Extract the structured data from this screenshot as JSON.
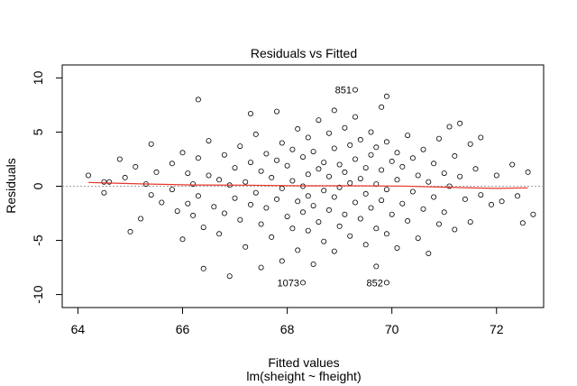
{
  "chart_data": {
    "type": "scatter",
    "title": "Residuals vs Fitted",
    "xlabel": "Fitted values",
    "subtitle": "lm(sheight ~ fheight)",
    "ylabel": "Residuals",
    "xlim": [
      63.7,
      72.9
    ],
    "ylim": [
      -11.2,
      11.2
    ],
    "xticks": [
      64,
      66,
      68,
      70,
      72
    ],
    "yticks": [
      -10,
      -5,
      0,
      5,
      10
    ],
    "grid": false,
    "zero_line_color": "#a0a0a0",
    "smooth_color": "#e8362a",
    "point_color": "#000000",
    "smooth": [
      [
        64.2,
        0.35
      ],
      [
        65.2,
        0.22
      ],
      [
        66.2,
        0.12
      ],
      [
        67.2,
        0.1
      ],
      [
        68.2,
        0.04
      ],
      [
        69.2,
        0.04
      ],
      [
        70.2,
        0.02
      ],
      [
        71.2,
        -0.12
      ],
      [
        72.0,
        -0.2
      ],
      [
        72.6,
        -0.15
      ]
    ],
    "labeled_points": [
      {
        "label": "851",
        "x": 69.3,
        "y": 8.9
      },
      {
        "label": "1073",
        "x": 68.3,
        "y": -8.9
      },
      {
        "label": "852",
        "x": 69.9,
        "y": -8.9
      }
    ],
    "points": [
      [
        64.2,
        1.0
      ],
      [
        64.5,
        -0.6
      ],
      [
        64.5,
        0.4
      ],
      [
        64.6,
        0.4
      ],
      [
        64.8,
        2.5
      ],
      [
        64.9,
        0.8
      ],
      [
        65.0,
        -4.2
      ],
      [
        65.1,
        1.8
      ],
      [
        65.2,
        -3.0
      ],
      [
        65.3,
        0.2
      ],
      [
        65.4,
        3.9
      ],
      [
        65.4,
        -0.8
      ],
      [
        65.5,
        1.3
      ],
      [
        65.6,
        -1.5
      ],
      [
        65.8,
        2.1
      ],
      [
        65.8,
        -0.3
      ],
      [
        65.9,
        -2.3
      ],
      [
        66.0,
        3.1
      ],
      [
        66.0,
        -4.9
      ],
      [
        66.1,
        1.2
      ],
      [
        66.1,
        -1.6
      ],
      [
        66.2,
        0.2
      ],
      [
        66.2,
        -2.7
      ],
      [
        66.3,
        8.0
      ],
      [
        66.3,
        2.6
      ],
      [
        66.3,
        -0.9
      ],
      [
        66.4,
        -7.6
      ],
      [
        66.4,
        -3.8
      ],
      [
        66.5,
        4.2
      ],
      [
        66.5,
        1.0
      ],
      [
        66.6,
        -1.9
      ],
      [
        66.7,
        0.6
      ],
      [
        66.7,
        -4.4
      ],
      [
        66.8,
        2.9
      ],
      [
        66.8,
        -2.5
      ],
      [
        66.9,
        0.1
      ],
      [
        66.9,
        -8.3
      ],
      [
        67.0,
        1.7
      ],
      [
        67.0,
        -1.1
      ],
      [
        67.1,
        3.7
      ],
      [
        67.1,
        -3.1
      ],
      [
        67.2,
        0.4
      ],
      [
        67.2,
        -5.6
      ],
      [
        67.3,
        6.7
      ],
      [
        67.3,
        2.2
      ],
      [
        67.3,
        -1.7
      ],
      [
        67.4,
        4.8
      ],
      [
        67.4,
        -0.6
      ],
      [
        67.5,
        1.4
      ],
      [
        67.5,
        -3.5
      ],
      [
        67.5,
        -7.5
      ],
      [
        67.6,
        3.0
      ],
      [
        67.6,
        -2.0
      ],
      [
        67.7,
        0.8
      ],
      [
        67.7,
        -4.7
      ],
      [
        67.8,
        6.9
      ],
      [
        67.8,
        2.4
      ],
      [
        67.8,
        -1.2
      ],
      [
        67.9,
        4.0
      ],
      [
        67.9,
        -0.2
      ],
      [
        67.9,
        -6.9
      ],
      [
        68.0,
        1.9
      ],
      [
        68.0,
        -2.8
      ],
      [
        68.1,
        3.4
      ],
      [
        68.1,
        0.5
      ],
      [
        68.1,
        -3.9
      ],
      [
        68.2,
        5.3
      ],
      [
        68.2,
        -1.4
      ],
      [
        68.2,
        -5.9
      ],
      [
        68.3,
        2.7
      ],
      [
        68.3,
        0.0
      ],
      [
        68.3,
        -2.4
      ],
      [
        68.4,
        4.5
      ],
      [
        68.4,
        1.1
      ],
      [
        68.4,
        -0.9
      ],
      [
        68.4,
        -4.1
      ],
      [
        68.5,
        3.2
      ],
      [
        68.5,
        -1.8
      ],
      [
        68.5,
        -7.2
      ],
      [
        68.6,
        6.1
      ],
      [
        68.6,
        1.6
      ],
      [
        68.6,
        -3.3
      ],
      [
        68.7,
        2.2
      ],
      [
        68.7,
        -0.4
      ],
      [
        68.7,
        -5.1
      ],
      [
        68.8,
        4.9
      ],
      [
        68.8,
        0.9
      ],
      [
        68.8,
        -2.2
      ],
      [
        68.9,
        7.0
      ],
      [
        68.9,
        3.5
      ],
      [
        68.9,
        -1.0
      ],
      [
        68.9,
        -6.0
      ],
      [
        69.0,
        2.0
      ],
      [
        69.0,
        -0.1
      ],
      [
        69.0,
        -3.7
      ],
      [
        69.1,
        5.4
      ],
      [
        69.1,
        1.3
      ],
      [
        69.1,
        -2.6
      ],
      [
        69.2,
        3.8
      ],
      [
        69.2,
        0.3
      ],
      [
        69.2,
        -4.6
      ],
      [
        69.3,
        6.4
      ],
      [
        69.3,
        2.5
      ],
      [
        69.3,
        -1.5
      ],
      [
        69.4,
        4.3
      ],
      [
        69.4,
        0.7
      ],
      [
        69.4,
        -3.0
      ],
      [
        69.5,
        1.7
      ],
      [
        69.5,
        -0.7
      ],
      [
        69.5,
        -5.4
      ],
      [
        69.6,
        5.0
      ],
      [
        69.6,
        2.9
      ],
      [
        69.6,
        -2.0
      ],
      [
        69.7,
        3.6
      ],
      [
        69.7,
        0.2
      ],
      [
        69.7,
        -3.9
      ],
      [
        69.7,
        -7.4
      ],
      [
        69.8,
        7.3
      ],
      [
        69.8,
        1.5
      ],
      [
        69.8,
        -1.3
      ],
      [
        69.9,
        8.3
      ],
      [
        69.9,
        4.1
      ],
      [
        69.9,
        -0.3
      ],
      [
        69.9,
        -4.4
      ],
      [
        70.0,
        2.3
      ],
      [
        70.0,
        -2.6
      ],
      [
        70.1,
        3.1
      ],
      [
        70.1,
        0.6
      ],
      [
        70.1,
        -5.7
      ],
      [
        70.2,
        1.8
      ],
      [
        70.2,
        -1.6
      ],
      [
        70.3,
        4.7
      ],
      [
        70.3,
        -3.2
      ],
      [
        70.4,
        2.6
      ],
      [
        70.4,
        -0.5
      ],
      [
        70.5,
        1.0
      ],
      [
        70.5,
        -4.8
      ],
      [
        70.6,
        3.4
      ],
      [
        70.6,
        -2.1
      ],
      [
        70.7,
        0.4
      ],
      [
        70.7,
        -6.2
      ],
      [
        70.8,
        2.1
      ],
      [
        70.8,
        -1.0
      ],
      [
        70.9,
        4.4
      ],
      [
        70.9,
        -3.5
      ],
      [
        71.0,
        1.2
      ],
      [
        71.0,
        -2.4
      ],
      [
        71.1,
        5.5
      ],
      [
        71.1,
        0.0
      ],
      [
        71.2,
        2.8
      ],
      [
        71.2,
        -4.0
      ],
      [
        71.3,
        5.8
      ],
      [
        71.3,
        0.9
      ],
      [
        71.4,
        -1.2
      ],
      [
        71.5,
        3.9
      ],
      [
        71.5,
        -3.3
      ],
      [
        71.6,
        1.6
      ],
      [
        71.7,
        4.5
      ],
      [
        71.7,
        -0.8
      ],
      [
        71.9,
        -1.7
      ],
      [
        72.0,
        1.0
      ],
      [
        72.1,
        -1.4
      ],
      [
        72.3,
        2.0
      ],
      [
        72.4,
        -0.9
      ],
      [
        72.5,
        -3.4
      ],
      [
        72.6,
        1.3
      ],
      [
        72.7,
        -2.6
      ]
    ]
  }
}
